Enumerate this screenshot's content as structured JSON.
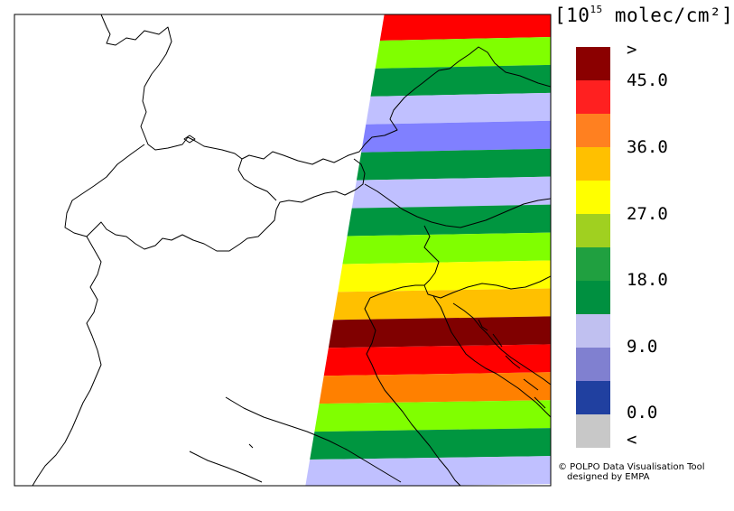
{
  "legend": {
    "title_prefix": "[10",
    "title_exp": "15",
    "title_suffix": " molec/cm²]",
    "ticks": [
      ">",
      "45.0",
      "36.0",
      "27.0",
      "18.0",
      "9.0",
      "0.0",
      "<"
    ],
    "colors": [
      "#8b0000",
      "#ff2020",
      "#ff8020",
      "#ffc000",
      "#ffff00",
      "#a0d020",
      "#20a040",
      "#009040",
      "#c0c0f0",
      "#8080d0",
      "#2040a0",
      "#c8c8c8"
    ]
  },
  "credit": {
    "line1": "© POLPO Data Visualisation Tool",
    "line2": "designed by EMPA"
  },
  "map": {
    "swath_colors": [
      "#ff0000",
      "#80ff00",
      "#009640",
      "#c0c0ff",
      "#8080ff",
      "#009640",
      "#c0c0ff",
      "#009640",
      "#80ff00",
      "#ffff00",
      "#ffc000",
      "#800000",
      "#ff0000",
      "#ff8000",
      "#80ff00",
      "#009640",
      "#c0c0ff"
    ]
  }
}
